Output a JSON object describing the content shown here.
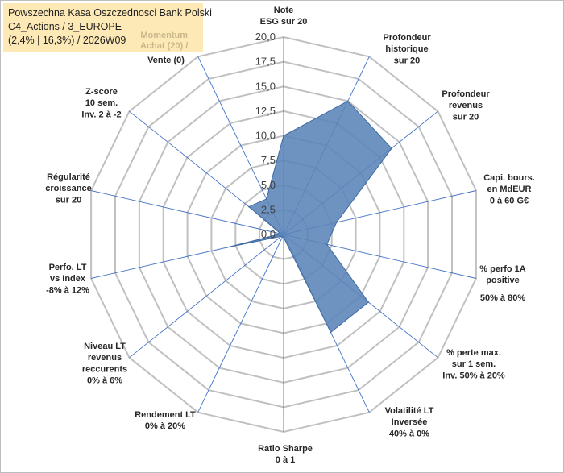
{
  "header": {
    "line1": "Powszechna Kasa Oszczednosci Bank Polski",
    "line2": "C4_Actions / 3_EUROPE",
    "line3": "(2,4% | 16,3%) / 2026W09",
    "momentum_line1": "Momentum",
    "momentum_line2": "Achat (20) /"
  },
  "colors": {
    "fill": "#5b84b8",
    "stroke": "#3d6aa3",
    "grid": "#c0c0c0",
    "spoke": "#4472c4",
    "title_bg": "#fde9b6"
  },
  "chart_data": {
    "type": "radar",
    "rmax": 20,
    "ticks": [
      "0,0",
      "2,5",
      "5,0",
      "7,5",
      "10,0",
      "12,5",
      "15,0",
      "17,5",
      "20,0"
    ],
    "tick_values": [
      0,
      2.5,
      5,
      7.5,
      10,
      12.5,
      15,
      17.5,
      20
    ],
    "axes": [
      {
        "label": [
          "Note",
          "ESG sur 20"
        ],
        "value": 10.0
      },
      {
        "label": [
          "Profondeur",
          "historique",
          "sur 20"
        ],
        "value": 15.0
      },
      {
        "label": [
          "Profondeur",
          "revenus",
          "sur 20"
        ],
        "value": 14.0
      },
      {
        "label": [
          "Capi. bours.",
          "en MdEUR",
          "0 à 60 G€"
        ],
        "value": 5.5
      },
      {
        "label": [
          "% perfo 1A",
          "positive"
        ],
        "label_extra": "50% à 80%",
        "value": 4.5
      },
      {
        "label": [
          "% perte max.",
          "sur 1 sem.",
          "Inv. 50% à 20%"
        ],
        "value": 11.0
      },
      {
        "label": [
          "Volatilité LT",
          "Inversée",
          "40% à 0%"
        ],
        "value": 11.0
      },
      {
        "label": [
          "Ratio Sharpe",
          "0 à 1"
        ],
        "value": 0.3
      },
      {
        "label": [
          "Rendement LT",
          "0% à 20%"
        ],
        "value": 0.3
      },
      {
        "label": [
          "Niveau LT",
          "revenus",
          "reccurents",
          "0% à 6%"
        ],
        "value": 0.3
      },
      {
        "label": [
          "Perfo. LT",
          "vs Index",
          "-8% à 12%"
        ],
        "value": 6.0
      },
      {
        "label": [
          "Régularité",
          "croissance",
          "sur 20"
        ],
        "value": 0.3
      },
      {
        "label": [
          "Z-score",
          "10 sem.",
          "Inv. 2 à -2"
        ],
        "value": 4.5
      },
      {
        "label": [
          "Vente (0)"
        ],
        "value": 4.0
      }
    ]
  }
}
